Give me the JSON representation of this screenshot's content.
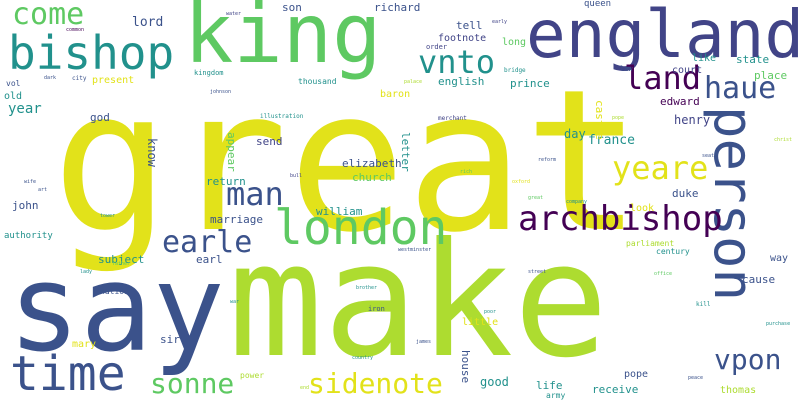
{
  "colors": {
    "background": "#ffffff",
    "yellow": "#e2e21a",
    "lime": "#addc30",
    "green": "#5ec962",
    "teal": "#21918c",
    "cyan": "#2c9c89",
    "blue": "#3b528b",
    "indigo": "#414487",
    "purple": "#440154",
    "plum": "#482878"
  },
  "words": [
    {
      "text": "great",
      "color": "yellow"
    },
    {
      "text": "make",
      "color": "lime"
    },
    {
      "text": "say",
      "color": "blue"
    },
    {
      "text": "king",
      "color": "green"
    },
    {
      "text": "england",
      "color": "indigo"
    },
    {
      "text": "person",
      "color": "blue"
    },
    {
      "text": "bishop",
      "color": "teal"
    },
    {
      "text": "london",
      "color": "green"
    },
    {
      "text": "time",
      "color": "blue"
    },
    {
      "text": "archbishop",
      "color": "purple"
    },
    {
      "text": "yeare",
      "color": "yellow"
    },
    {
      "text": "come",
      "color": "green"
    },
    {
      "text": "vnto",
      "color": "teal"
    },
    {
      "text": "man",
      "color": "blue"
    },
    {
      "text": "earle",
      "color": "blue"
    },
    {
      "text": "land",
      "color": "purple"
    },
    {
      "text": "haue",
      "color": "blue"
    },
    {
      "text": "sonne",
      "color": "green"
    },
    {
      "text": "sidenote",
      "color": "yellow"
    },
    {
      "text": "vpon",
      "color": "blue"
    },
    {
      "text": "lord",
      "color": "blue"
    },
    {
      "text": "son",
      "color": "blue"
    },
    {
      "text": "richard",
      "color": "blue"
    },
    {
      "text": "queen",
      "color": "blue"
    },
    {
      "text": "tell",
      "color": "blue"
    },
    {
      "text": "footnote",
      "color": "indigo"
    },
    {
      "text": "long",
      "color": "green"
    },
    {
      "text": "english",
      "color": "teal"
    },
    {
      "text": "prince",
      "color": "teal"
    },
    {
      "text": "court",
      "color": "indigo"
    },
    {
      "text": "state",
      "color": "teal"
    },
    {
      "text": "place",
      "color": "green"
    },
    {
      "text": "like",
      "color": "teal"
    },
    {
      "text": "edward",
      "color": "purple"
    },
    {
      "text": "henry",
      "color": "indigo"
    },
    {
      "text": "year",
      "color": "teal"
    },
    {
      "text": "old",
      "color": "teal"
    },
    {
      "text": "vol",
      "color": "blue"
    },
    {
      "text": "present",
      "color": "yellow"
    },
    {
      "text": "god",
      "color": "blue"
    },
    {
      "text": "know",
      "color": "blue"
    },
    {
      "text": "appear",
      "color": "green"
    },
    {
      "text": "send",
      "color": "indigo"
    },
    {
      "text": "day",
      "color": "teal"
    },
    {
      "text": "france",
      "color": "teal"
    },
    {
      "text": "letter",
      "color": "teal"
    },
    {
      "text": "castle",
      "color": "yellow"
    },
    {
      "text": "elizabeth",
      "color": "blue"
    },
    {
      "text": "church",
      "color": "green"
    },
    {
      "text": "return",
      "color": "teal"
    },
    {
      "text": "duke",
      "color": "blue"
    },
    {
      "text": "john",
      "color": "blue"
    },
    {
      "text": "william",
      "color": "teal"
    },
    {
      "text": "look",
      "color": "yellow"
    },
    {
      "text": "marriage",
      "color": "blue"
    },
    {
      "text": "earl",
      "color": "blue"
    },
    {
      "text": "subject",
      "color": "teal"
    },
    {
      "text": "way",
      "color": "blue"
    },
    {
      "text": "authority",
      "color": "teal"
    },
    {
      "text": "cause",
      "color": "blue"
    },
    {
      "text": "parliament",
      "color": "lime"
    },
    {
      "text": "century",
      "color": "teal"
    },
    {
      "text": "nation",
      "color": "blue"
    },
    {
      "text": "sir",
      "color": "blue"
    },
    {
      "text": "mary",
      "color": "yellow"
    },
    {
      "text": "little",
      "color": "yellow"
    },
    {
      "text": "house",
      "color": "blue"
    },
    {
      "text": "good",
      "color": "teal"
    },
    {
      "text": "life",
      "color": "teal"
    },
    {
      "text": "receive",
      "color": "teal"
    },
    {
      "text": "pope",
      "color": "blue"
    },
    {
      "text": "army",
      "color": "teal"
    },
    {
      "text": "thomas",
      "color": "lime"
    },
    {
      "text": "power",
      "color": "lime"
    },
    {
      "text": "baron",
      "color": "yellow"
    },
    {
      "text": "thousand",
      "color": "teal"
    },
    {
      "text": "kingdom",
      "color": "teal"
    },
    {
      "text": "illustration",
      "color": "teal"
    },
    {
      "text": "order",
      "color": "indigo"
    },
    {
      "text": "bridge",
      "color": "teal"
    },
    {
      "text": "law",
      "color": "blue"
    },
    {
      "text": "merchant",
      "color": "indigo"
    },
    {
      "text": "palace",
      "color": "lime"
    },
    {
      "text": "city",
      "color": "blue"
    },
    {
      "text": "dark",
      "color": "blue"
    },
    {
      "text": "common",
      "color": "purple"
    },
    {
      "text": "tower",
      "color": "teal"
    },
    {
      "text": "water",
      "color": "indigo"
    },
    {
      "text": "early",
      "color": "indigo"
    },
    {
      "text": "johnson",
      "color": "blue"
    },
    {
      "text": "reform",
      "color": "blue"
    },
    {
      "text": "company",
      "color": "teal"
    },
    {
      "text": "pope",
      "color": "lime"
    },
    {
      "text": "christ",
      "color": "lime"
    },
    {
      "text": "kill",
      "color": "teal"
    },
    {
      "text": "oxford",
      "color": "yellow"
    },
    {
      "text": "street",
      "color": "blue"
    },
    {
      "text": "iron",
      "color": "blue"
    },
    {
      "text": "country",
      "color": "teal"
    },
    {
      "text": "james",
      "color": "blue"
    },
    {
      "text": "rich",
      "color": "green"
    },
    {
      "text": "westminster",
      "color": "blue"
    },
    {
      "text": "poor",
      "color": "teal"
    },
    {
      "text": "purchase",
      "color": "teal"
    },
    {
      "text": "act",
      "color": "blue"
    },
    {
      "text": "bull",
      "color": "indigo"
    },
    {
      "text": "end",
      "color": "lime"
    },
    {
      "text": "art",
      "color": "blue"
    },
    {
      "text": "wife",
      "color": "blue"
    },
    {
      "text": "lady",
      "color": "teal"
    },
    {
      "text": "office",
      "color": "green"
    },
    {
      "text": "peace",
      "color": "blue"
    },
    {
      "text": "war",
      "color": "teal"
    },
    {
      "text": "father",
      "color": "green"
    },
    {
      "text": "brother",
      "color": "teal"
    },
    {
      "text": "seat",
      "color": "blue"
    },
    {
      "text": "great",
      "color": "green"
    },
    {
      "text": "side",
      "color": "lime"
    }
  ]
}
